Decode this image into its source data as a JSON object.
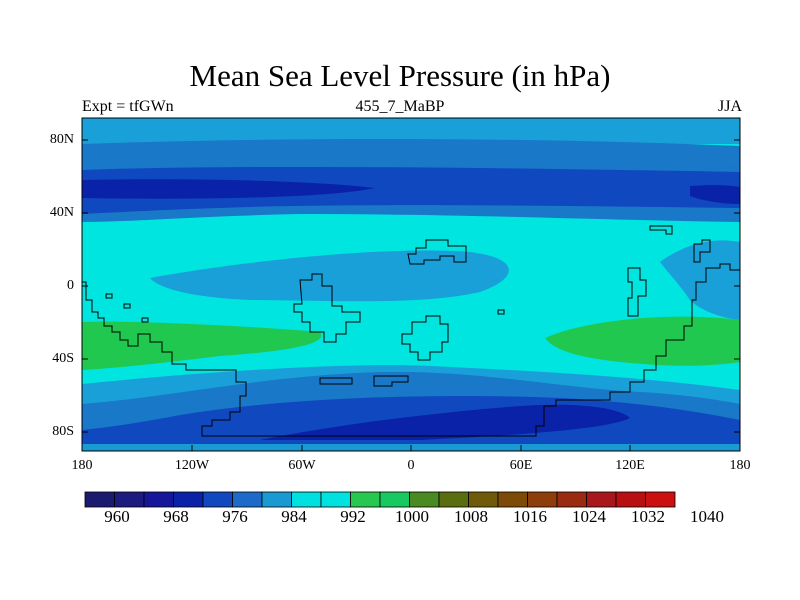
{
  "map": {
    "title": "Mean Sea Level Pressure (in hPa)",
    "left_label": "Expt = tfGWn",
    "center_label": "455_7_MaBP",
    "right_label": "JJA",
    "lat_ticks": [
      "80N",
      "40N",
      "0",
      "40S",
      "80S"
    ],
    "lon_ticks": [
      "180",
      "120W",
      "60W",
      "0",
      "60E",
      "120E",
      "180"
    ]
  },
  "colorbar": {
    "colors": [
      "#1a1a6e",
      "#1c1c80",
      "#16169a",
      "#0a22a8",
      "#1048c0",
      "#1e6ac8",
      "#1a9ad2",
      "#00e0e0",
      "#00e2e0",
      "#28c850",
      "#18c860",
      "#4a8a22",
      "#5a6e10",
      "#6e5a08",
      "#7e4a08",
      "#8e3e0a",
      "#9a2a10",
      "#a8181a",
      "#b81010",
      "#cc1010"
    ],
    "labels": [
      "960",
      "968",
      "976",
      "984",
      "992",
      "1000",
      "1008",
      "1016",
      "1024",
      "1032",
      "1040"
    ]
  },
  "colors": {
    "lightcyan": "#00e5e0",
    "midblue": "#1978c8",
    "skyblue": "#1aa0d8",
    "darkblue": "#1048c0",
    "navy": "#0a22a8",
    "green": "#20c850"
  }
}
